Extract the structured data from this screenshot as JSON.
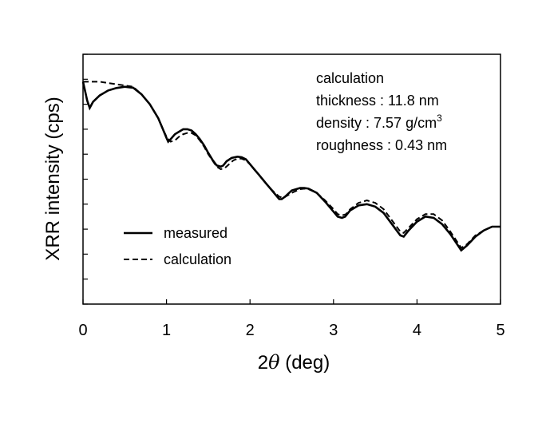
{
  "chart_data": {
    "type": "line",
    "title": "",
    "xlabel_prefix": "2",
    "xlabel_symbol": "θ",
    "xlabel_suffix": " (deg)",
    "ylabel": "XRR intensity  (cps)",
    "xlim": [
      0,
      5
    ],
    "ylim": [
      0,
      10
    ],
    "y_scale": "log",
    "y_tick_labels": "none",
    "grid": false,
    "x_ticks": [
      "0",
      "1",
      "2",
      "3",
      "4",
      "5"
    ],
    "legend_position": "bottom-left",
    "legend": [
      {
        "label": "measured",
        "style": "solid"
      },
      {
        "label": "calculation",
        "style": "dashed"
      }
    ],
    "annotation": {
      "line1": "calculation",
      "line2": "thickness : 11.8 nm",
      "line3_prefix": "density : 7.57 g/cm",
      "line3_sup": "3",
      "line4": "roughness : 0.43 nm"
    },
    "series": [
      {
        "name": "measured",
        "style": "solid",
        "x": [
          0.0,
          0.02,
          0.05,
          0.08,
          0.12,
          0.2,
          0.3,
          0.4,
          0.5,
          0.6,
          0.7,
          0.8,
          0.9,
          0.95,
          1.0,
          1.02,
          1.05,
          1.1,
          1.15,
          1.2,
          1.25,
          1.3,
          1.35,
          1.4,
          1.45,
          1.5,
          1.55,
          1.6,
          1.65,
          1.68,
          1.72,
          1.78,
          1.85,
          1.9,
          1.95,
          2.0,
          2.05,
          2.1,
          2.15,
          2.2,
          2.25,
          2.3,
          2.35,
          2.38,
          2.42,
          2.5,
          2.6,
          2.65,
          2.7,
          2.8,
          2.9,
          3.0,
          3.05,
          3.1,
          3.14,
          3.2,
          3.3,
          3.4,
          3.5,
          3.6,
          3.7,
          3.8,
          3.84,
          3.9,
          4.0,
          4.1,
          4.2,
          4.3,
          4.4,
          4.5,
          4.53,
          4.6,
          4.7,
          4.8,
          4.9,
          5.0
        ],
        "y": [
          8.9,
          8.6,
          8.15,
          7.85,
          8.1,
          8.35,
          8.55,
          8.65,
          8.7,
          8.66,
          8.4,
          8.0,
          7.45,
          7.05,
          6.65,
          6.5,
          6.6,
          6.8,
          6.9,
          7.0,
          7.0,
          6.95,
          6.8,
          6.6,
          6.35,
          6.05,
          5.78,
          5.55,
          5.5,
          5.55,
          5.72,
          5.85,
          5.9,
          5.88,
          5.8,
          5.6,
          5.4,
          5.2,
          5.0,
          4.8,
          4.6,
          4.4,
          4.2,
          4.2,
          4.3,
          4.55,
          4.65,
          4.65,
          4.62,
          4.45,
          4.1,
          3.7,
          3.5,
          3.45,
          3.5,
          3.75,
          3.95,
          4.0,
          3.9,
          3.65,
          3.2,
          2.75,
          2.7,
          2.95,
          3.3,
          3.5,
          3.45,
          3.2,
          2.8,
          2.3,
          2.15,
          2.35,
          2.7,
          2.95,
          3.1,
          3.1
        ]
      },
      {
        "name": "calculation",
        "style": "dashed",
        "x": [
          0.0,
          0.1,
          0.2,
          0.3,
          0.4,
          0.5,
          0.6,
          0.7,
          0.8,
          0.9,
          0.95,
          1.0,
          1.05,
          1.1,
          1.15,
          1.2,
          1.25,
          1.3,
          1.35,
          1.4,
          1.45,
          1.5,
          1.55,
          1.6,
          1.65,
          1.7,
          1.75,
          1.8,
          1.85,
          1.9,
          1.95,
          2.0,
          2.05,
          2.1,
          2.15,
          2.2,
          2.25,
          2.3,
          2.35,
          2.4,
          2.5,
          2.6,
          2.65,
          2.7,
          2.8,
          2.9,
          3.0,
          3.05,
          3.1,
          3.15,
          3.2,
          3.3,
          3.4,
          3.5,
          3.6,
          3.7,
          3.8,
          3.84,
          3.9,
          4.0,
          4.1,
          4.2,
          4.3,
          4.4,
          4.5,
          4.53,
          4.6,
          4.7,
          4.8,
          4.9,
          5.0
        ],
        "y": [
          8.9,
          8.9,
          8.9,
          8.85,
          8.8,
          8.75,
          8.7,
          8.4,
          8.0,
          7.45,
          7.05,
          6.7,
          6.5,
          6.55,
          6.7,
          6.8,
          6.85,
          6.85,
          6.75,
          6.55,
          6.3,
          6.0,
          5.75,
          5.5,
          5.4,
          5.45,
          5.6,
          5.75,
          5.82,
          5.82,
          5.75,
          5.6,
          5.4,
          5.2,
          5.0,
          4.8,
          4.6,
          4.45,
          4.3,
          4.25,
          4.45,
          4.6,
          4.62,
          4.6,
          4.45,
          4.15,
          3.8,
          3.6,
          3.55,
          3.6,
          3.8,
          4.05,
          4.15,
          4.05,
          3.8,
          3.35,
          2.9,
          2.85,
          3.05,
          3.4,
          3.6,
          3.6,
          3.35,
          2.9,
          2.4,
          2.25,
          2.4,
          2.75,
          2.95,
          3.1,
          3.1
        ]
      }
    ]
  }
}
